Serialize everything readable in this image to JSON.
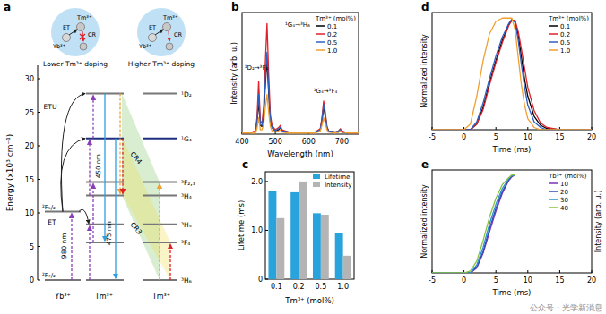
{
  "diagram": {
    "panel_label": "a",
    "insets": [
      {
        "caption": "Lower Tm³⁺ doping",
        "labels": [
          "Tm³⁺",
          "Yb³⁺",
          "ET",
          "CR"
        ]
      },
      {
        "caption": "Higher Tm³⁺ doping",
        "labels": [
          "Tm³⁺",
          "Yb³⁺",
          "ET",
          "CR"
        ]
      }
    ],
    "energy_axis": {
      "label": "Energy (x10³ cm⁻¹)",
      "ylim": [
        0,
        32
      ],
      "yticks": [
        0,
        5,
        10,
        15,
        20,
        25,
        30
      ]
    },
    "ions": [
      "Yb³⁺",
      "Tm³⁺",
      "Tm³⁺"
    ],
    "yb_levels": [
      {
        "label": "²F₇/₂",
        "energy": 0
      },
      {
        "label": "²F₅/₂",
        "energy": 10.2
      }
    ],
    "tm_levels": [
      {
        "label": "¹D₂",
        "energy": 27.8
      },
      {
        "label": "¹G₄",
        "energy": 21.1
      },
      {
        "label": "³F₂,₃",
        "energy": 14.6
      },
      {
        "label": "³H₄",
        "energy": 12.6
      },
      {
        "label": "³H₅",
        "energy": 8.3
      },
      {
        "label": "³F₄",
        "energy": 5.6
      },
      {
        "label": "³H₆",
        "energy": 0
      }
    ],
    "arrow_labels": {
      "etu": "ETU",
      "et": "ET",
      "cr3": "CR3",
      "cr4": "CR4",
      "pump": "980 nm",
      "blue_450": "450 nm",
      "blue_475": "475 nm"
    }
  },
  "chart_data": [
    {
      "type": "line",
      "panel_label": "b",
      "xlabel": "Wavelength (nm)",
      "ylabel": "Intensity (arb. u.)",
      "legend_title": "Tm³⁺ (mol%)",
      "legend": "upper right",
      "tick_labels": "x",
      "xlim": [
        400,
        750
      ],
      "xticks": [
        400,
        500,
        600,
        700
      ],
      "ylim": [
        0,
        1.1
      ],
      "x": [
        400,
        420,
        440,
        445,
        450,
        455,
        460,
        465,
        470,
        475,
        480,
        485,
        490,
        500,
        510,
        515,
        520,
        540,
        560,
        600,
        620,
        635,
        640,
        645,
        650,
        655,
        660,
        680,
        690,
        695,
        700,
        720,
        750
      ],
      "series": [
        {
          "name": "0.1",
          "color": "#000000",
          "values": [
            0.01,
            0.01,
            0.02,
            0.1,
            0.3,
            0.08,
            0.07,
            0.17,
            0.45,
            0.68,
            0.38,
            0.12,
            0.06,
            0.03,
            0.04,
            0.06,
            0.03,
            0.02,
            0.02,
            0.02,
            0.02,
            0.04,
            0.12,
            0.25,
            0.16,
            0.06,
            0.03,
            0.02,
            0.02,
            0.04,
            0.02,
            0.01,
            0.01
          ]
        },
        {
          "name": "0.2",
          "color": "#e0202a",
          "values": [
            0.01,
            0.01,
            0.03,
            0.15,
            0.48,
            0.12,
            0.1,
            0.25,
            0.65,
            1.0,
            0.55,
            0.18,
            0.08,
            0.04,
            0.06,
            0.08,
            0.04,
            0.02,
            0.02,
            0.02,
            0.02,
            0.05,
            0.15,
            0.3,
            0.2,
            0.07,
            0.03,
            0.02,
            0.03,
            0.05,
            0.03,
            0.01,
            0.01
          ]
        },
        {
          "name": "0.5",
          "color": "#2f5fc0",
          "values": [
            0.01,
            0.01,
            0.02,
            0.11,
            0.36,
            0.09,
            0.08,
            0.19,
            0.49,
            0.74,
            0.41,
            0.13,
            0.06,
            0.03,
            0.05,
            0.06,
            0.03,
            0.02,
            0.02,
            0.02,
            0.02,
            0.04,
            0.13,
            0.27,
            0.18,
            0.06,
            0.03,
            0.02,
            0.03,
            0.04,
            0.02,
            0.01,
            0.01
          ]
        },
        {
          "name": "1.0",
          "color": "#f0a030",
          "values": [
            0.01,
            0.01,
            0.01,
            0.05,
            0.15,
            0.04,
            0.04,
            0.09,
            0.24,
            0.36,
            0.2,
            0.07,
            0.03,
            0.02,
            0.03,
            0.04,
            0.02,
            0.01,
            0.01,
            0.01,
            0.01,
            0.03,
            0.08,
            0.15,
            0.1,
            0.04,
            0.02,
            0.01,
            0.02,
            0.03,
            0.02,
            0.01,
            0.01
          ]
        }
      ],
      "annotations": [
        "¹D₂→³F₄",
        "¹G₄→³H₆",
        "¹G₄→³F₄"
      ]
    },
    {
      "type": "bar",
      "panel_label": "c",
      "xlabel": "Tm³⁺ (mol%)",
      "ylabel": "Lifetime (ms)",
      "legend": "upper right",
      "categories": [
        "0.1",
        "0.2",
        "0.5",
        "1.0"
      ],
      "series": [
        {
          "name": "Lifetime",
          "color": "#29a3dc",
          "values": [
            1.8,
            1.78,
            1.35,
            0.95
          ]
        },
        {
          "name": "Intensity",
          "color": "#b4b4b4",
          "values": [
            1.25,
            2.0,
            1.32,
            0.48
          ]
        }
      ],
      "ylim": [
        0,
        2.2
      ],
      "yticks": [
        0,
        {
          "value": 1,
          "label": "1.0"
        },
        {
          "value": 2,
          "label": "2.0"
        }
      ]
    },
    {
      "type": "line",
      "panel_label": "d",
      "xlabel": "Time (ms)",
      "ylabel": "Normalized intensity",
      "legend_title": "Tm³⁺ (mol%)",
      "legend": "upper right",
      "tick_labels": "x",
      "xlim": [
        -5,
        20
      ],
      "xticks": [
        -5,
        0,
        5,
        10,
        15,
        20
      ],
      "ylim": [
        0,
        1.05
      ],
      "x": [
        -5,
        0,
        1,
        2,
        3,
        4,
        5,
        6,
        7,
        7.5,
        8,
        8.5,
        9,
        9.5,
        10,
        11,
        12,
        13,
        15,
        20
      ],
      "series": [
        {
          "name": "0.1",
          "color": "#000000",
          "values": [
            0,
            0,
            0,
            0.05,
            0.2,
            0.42,
            0.62,
            0.8,
            0.94,
            0.98,
            0.97,
            0.85,
            0.65,
            0.45,
            0.3,
            0.12,
            0.04,
            0.01,
            0,
            0
          ]
        },
        {
          "name": "0.2",
          "color": "#e0202a",
          "values": [
            0,
            0,
            0,
            0.05,
            0.18,
            0.4,
            0.6,
            0.78,
            0.93,
            0.98,
            0.98,
            0.88,
            0.72,
            0.55,
            0.38,
            0.17,
            0.06,
            0.02,
            0,
            0
          ]
        },
        {
          "name": "0.5",
          "color": "#2f5fc0",
          "values": [
            0,
            0,
            0,
            0.07,
            0.24,
            0.46,
            0.66,
            0.83,
            0.95,
            0.99,
            0.96,
            0.8,
            0.58,
            0.38,
            0.22,
            0.07,
            0.02,
            0,
            0,
            0
          ]
        },
        {
          "name": "1.0",
          "color": "#f0a030",
          "values": [
            0,
            0,
            0.05,
            0.3,
            0.62,
            0.86,
            0.97,
            1.0,
            1.0,
            1.0,
            0.9,
            0.65,
            0.4,
            0.22,
            0.1,
            0.02,
            0,
            0,
            0,
            0
          ]
        }
      ]
    },
    {
      "type": "line",
      "panel_label": "e",
      "xlabel": "Time (ms)",
      "ylabel": "Normalized intensity",
      "ylabel_right": "Intensity (arb. u.)",
      "legend_title": "Yb³⁺ (mol%)",
      "legend": "upper right",
      "tick_labels": "x",
      "xlim": [
        -5,
        20
      ],
      "xticks": [
        -5,
        0,
        5,
        10,
        15,
        20
      ],
      "ylim": [
        0,
        1.05
      ],
      "x": [
        -5,
        0,
        1,
        2,
        3,
        4,
        5,
        6,
        7,
        7.5,
        8
      ],
      "series": [
        {
          "name": "10",
          "color": "#7b2fbf",
          "values": [
            0,
            0,
            0,
            0.05,
            0.2,
            0.42,
            0.63,
            0.81,
            0.94,
            0.98,
            1.0
          ]
        },
        {
          "name": "20",
          "color": "#3050b0",
          "values": [
            0,
            0,
            0,
            0.06,
            0.22,
            0.45,
            0.66,
            0.83,
            0.95,
            0.99,
            1.0
          ]
        },
        {
          "name": "30",
          "color": "#2a90d0",
          "values": [
            0,
            0,
            0,
            0.08,
            0.26,
            0.5,
            0.7,
            0.86,
            0.96,
            0.99,
            1.0
          ]
        },
        {
          "name": "40",
          "color": "#8ac040",
          "values": [
            0,
            0,
            0.02,
            0.12,
            0.33,
            0.57,
            0.76,
            0.9,
            0.97,
            1.0,
            1.0
          ]
        }
      ]
    }
  ],
  "watermark": "公众号 · 光学新消息"
}
